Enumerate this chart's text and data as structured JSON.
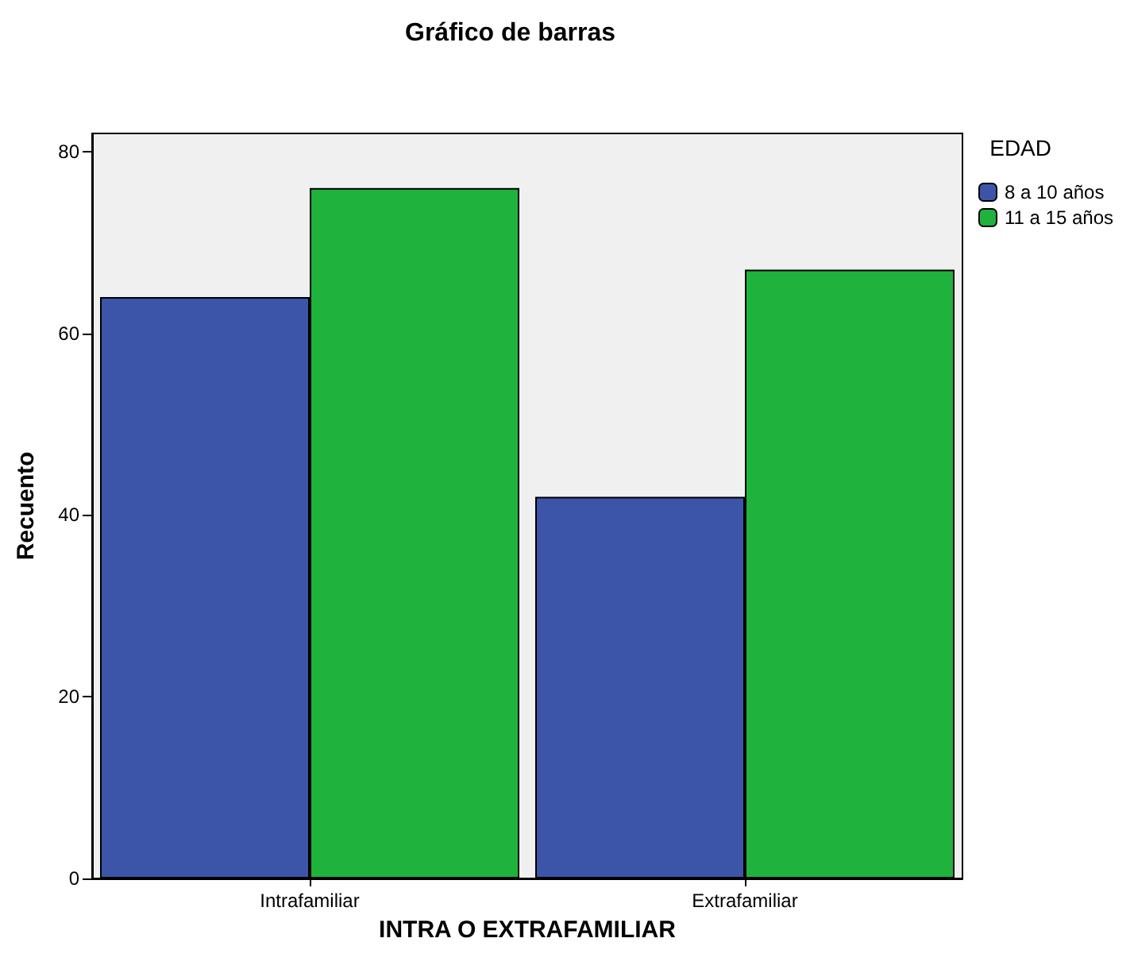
{
  "chart_data": {
    "type": "bar",
    "title": "Gráfico de barras",
    "xlabel": "INTRA O EXTRAFAMILIAR",
    "ylabel": "Recuento",
    "legend_title": "EDAD",
    "categories": [
      "Intrafamiliar",
      "Extrafamiliar"
    ],
    "series": [
      {
        "name": "8 a 10 años",
        "color": "#3d55a8",
        "values": [
          64,
          42
        ]
      },
      {
        "name": "11 a 15 años",
        "color": "#1fb23d",
        "values": [
          76,
          67
        ]
      }
    ],
    "ylim": [
      0,
      82
    ],
    "yticks": [
      0,
      20,
      40,
      60,
      80
    ],
    "grid": false,
    "legend": "top right"
  }
}
